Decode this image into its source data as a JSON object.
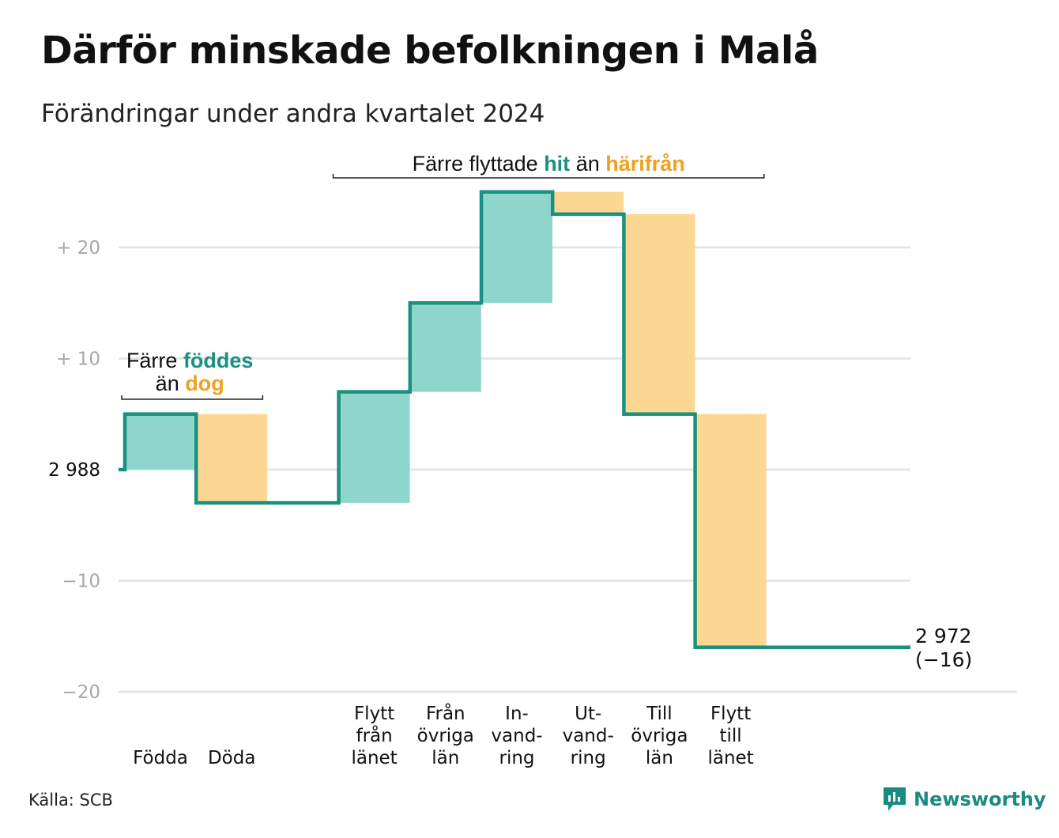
{
  "title": "Därför minskade befolkningen i Malå",
  "subtitle": "Förändringar under andra kvartalet 2024",
  "source": "Källa: SCB",
  "logo": {
    "name": "Newsworthy",
    "icon": "newsworthy-logo-icon"
  },
  "colors": {
    "increase": "#8ed6cc",
    "decrease": "#fbd792",
    "line": "#1a9081",
    "increase_text": "#1a9081",
    "decrease_text": "#f0a020",
    "grid": "#e2e2e2"
  },
  "chart_data": {
    "type": "waterfall",
    "start_value": 2988,
    "end_value": 2972,
    "end_change": "(−16)",
    "categories": [
      {
        "label": [
          "Födda"
        ],
        "value": 5
      },
      {
        "label": [
          "Döda"
        ],
        "value": -8
      },
      {
        "label": [],
        "value": 0
      },
      {
        "label": [
          "Flytt",
          "från",
          "länet"
        ],
        "value": 10
      },
      {
        "label": [
          "Från",
          "övriga",
          "län"
        ],
        "value": 8
      },
      {
        "label": [
          "In-",
          "vand-",
          "ring"
        ],
        "value": 10
      },
      {
        "label": [
          "Ut-",
          "vand-",
          "ring"
        ],
        "value": -2
      },
      {
        "label": [
          "Till",
          "övriga",
          "län"
        ],
        "value": -18
      },
      {
        "label": [
          "Flytt",
          "till",
          "länet"
        ],
        "value": -21
      }
    ],
    "yticks": [
      {
        "value": 20,
        "label": "+ 20"
      },
      {
        "value": 10,
        "label": "+ 10"
      },
      {
        "value": 0,
        "label": "2 988"
      },
      {
        "value": -10,
        "label": "−10"
      },
      {
        "value": -20,
        "label": "−20"
      }
    ],
    "ylim": [
      -20,
      25
    ],
    "grid": true,
    "annotations": [
      {
        "parts": [
          [
            "Färre ",
            "plain"
          ],
          [
            "föddes",
            "increase"
          ]
        ],
        "parts2": [
          [
            "än ",
            "plain"
          ],
          [
            "dog",
            "decrease"
          ]
        ],
        "span": [
          0,
          1
        ]
      },
      {
        "parts": [
          [
            "Färre flyttade ",
            "plain"
          ],
          [
            "hit",
            "increase"
          ],
          [
            " än ",
            "plain"
          ],
          [
            "härifrån",
            "decrease"
          ]
        ],
        "span": [
          3,
          8
        ]
      }
    ]
  }
}
